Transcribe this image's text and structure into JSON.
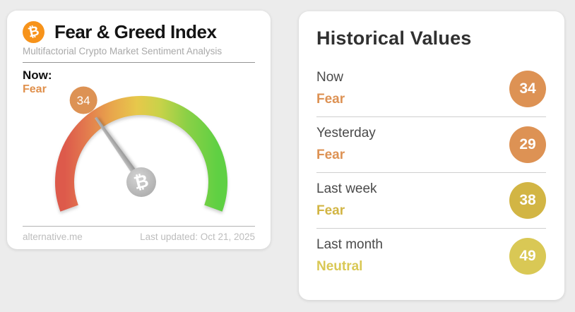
{
  "gauge_card": {
    "title": "Fear & Greed Index",
    "subtitle": "Multifactorial Crypto Market Sentiment Analysis",
    "now_label": "Now:",
    "now_status": "Fear",
    "now_status_color": "#e0904c",
    "gauge": {
      "type": "gauge",
      "value": 34,
      "min": 0,
      "max": 100,
      "arc_start_deg": 200,
      "arc_end_deg": -20,
      "badge_value": "34",
      "badge_color": "#dd9254",
      "arc_gradient": [
        "#dd5a4b",
        "#e2754e",
        "#e8a44c",
        "#e7c84b",
        "#c9d249",
        "#5fd043"
      ],
      "needle_color": "#a8a8a8",
      "hub_symbol": "₿"
    },
    "footer": {
      "source": "alternative.me",
      "last_updated": "Last updated: Oct 21, 2025"
    }
  },
  "historical_card": {
    "title": "Historical Values",
    "rows": [
      {
        "label": "Now",
        "status": "Fear",
        "value": "34",
        "color": "#dd9254"
      },
      {
        "label": "Yesterday",
        "status": "Fear",
        "value": "29",
        "color": "#dd9254"
      },
      {
        "label": "Last week",
        "status": "Fear",
        "value": "38",
        "color": "#d2b544"
      },
      {
        "label": "Last month",
        "status": "Neutral",
        "value": "49",
        "color": "#d9c855"
      }
    ]
  },
  "icons": {
    "bitcoin_symbol": "₿"
  }
}
